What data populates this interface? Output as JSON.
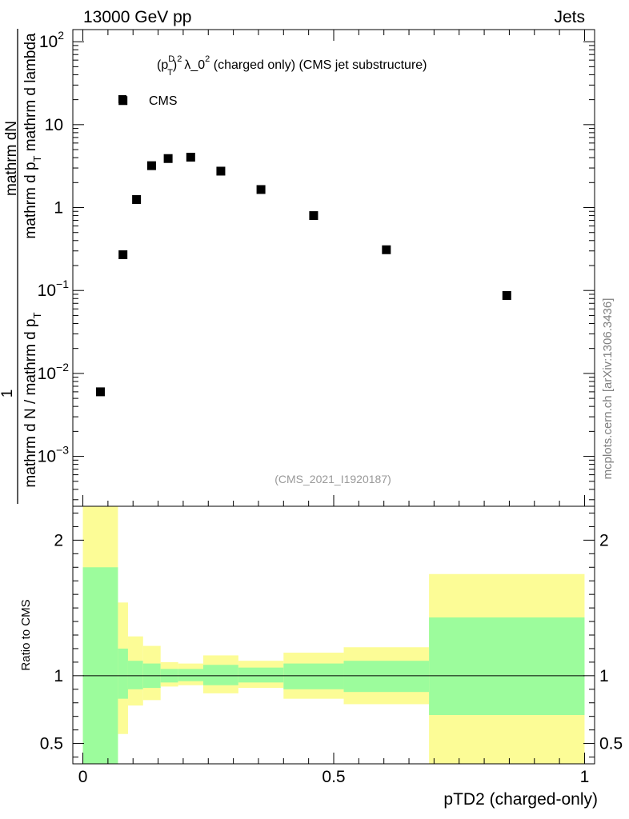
{
  "header": {
    "left": "13000 GeV pp",
    "right": "Jets"
  },
  "side_label": "mcplots.cern.ch [arXiv:1306.3436]",
  "chart_data": [
    {
      "type": "scatter",
      "title": "(pTD)2 λ_02 (charged only) (CMS jet substructure)",
      "title_parts": {
        "p": "(p",
        "sup_d": "D",
        "sub_t": "T",
        "close": ")",
        "sq": "2",
        "lambda": "λ_0",
        "sq2": "2",
        "rest": " (charged only) (CMS jet substructure)"
      },
      "ylabel_parts": {
        "top": "mathrm dN",
        "numerator_line": "mathrm d p",
        "numerator_sub": "T",
        "numerator_tail": " mathrm d lambda",
        "lhs_num": "1",
        "lhs_den": "mathrm d N / mathrm d p",
        "lhs_den_sub": "T"
      },
      "ylabel_full": "1 / (mathrm d N / mathrm d p_T) · mathrm dN / (mathrm d p_T mathrm d lambda)",
      "yscale": "log",
      "ylim": [
        0.00025,
        140
      ],
      "xlim": [
        -0.02,
        1.02
      ],
      "yticks": [
        {
          "v": 0.001,
          "base": "10",
          "exp": "−3"
        },
        {
          "v": 0.01,
          "base": "10",
          "exp": "−2"
        },
        {
          "v": 0.1,
          "base": "10",
          "exp": "−1"
        },
        {
          "v": 1,
          "base": "1",
          "exp": ""
        },
        {
          "v": 10,
          "base": "10",
          "exp": ""
        },
        {
          "v": 100,
          "base": "10",
          "exp": "2"
        }
      ],
      "legend": {
        "label": "CMS",
        "position": "top-left"
      },
      "annotation": "(CMS_2021_I1920187)",
      "series": [
        {
          "name": "CMS",
          "x": [
            0.035,
            0.08,
            0.08,
            0.107,
            0.137,
            0.17,
            0.215,
            0.275,
            0.355,
            0.46,
            0.605,
            0.845
          ],
          "y": [
            0.006,
            0.27,
            19.5,
            1.25,
            3.2,
            3.9,
            4.05,
            2.75,
            1.65,
            0.8,
            0.31,
            0.087
          ]
        }
      ]
    },
    {
      "type": "area",
      "ylabel": "Ratio to CMS",
      "xlabel": "pTD2 (charged-only)",
      "xlim": [
        -0.02,
        1.02
      ],
      "ylim": [
        0.35,
        2.25
      ],
      "xticks": [
        {
          "v": 0,
          "label": "0"
        },
        {
          "v": 0.5,
          "label": "0.5"
        },
        {
          "v": 1,
          "label": "1"
        }
      ],
      "yticks": [
        {
          "v": 0.5,
          "label": "0.5"
        },
        {
          "v": 1,
          "label": "1"
        },
        {
          "v": 2,
          "label": "2"
        }
      ],
      "reference_line": 1,
      "bins": [
        {
          "x0": 0.0,
          "x1": 0.07,
          "inner": [
            0.35,
            1.8
          ],
          "outer": [
            0.35,
            2.25
          ]
        },
        {
          "x0": 0.07,
          "x1": 0.09,
          "inner": [
            0.83,
            1.2
          ],
          "outer": [
            0.57,
            1.54
          ]
        },
        {
          "x0": 0.09,
          "x1": 0.12,
          "inner": [
            0.9,
            1.11
          ],
          "outer": [
            0.78,
            1.29
          ]
        },
        {
          "x0": 0.12,
          "x1": 0.155,
          "inner": [
            0.91,
            1.09
          ],
          "outer": [
            0.82,
            1.22
          ]
        },
        {
          "x0": 0.155,
          "x1": 0.19,
          "inner": [
            0.95,
            1.05
          ],
          "outer": [
            0.92,
            1.1
          ]
        },
        {
          "x0": 0.19,
          "x1": 0.24,
          "inner": [
            0.96,
            1.05
          ],
          "outer": [
            0.93,
            1.09
          ]
        },
        {
          "x0": 0.24,
          "x1": 0.31,
          "inner": [
            0.93,
            1.08
          ],
          "outer": [
            0.87,
            1.15
          ]
        },
        {
          "x0": 0.31,
          "x1": 0.4,
          "inner": [
            0.95,
            1.06
          ],
          "outer": [
            0.91,
            1.11
          ]
        },
        {
          "x0": 0.4,
          "x1": 0.52,
          "inner": [
            0.9,
            1.09
          ],
          "outer": [
            0.83,
            1.17
          ]
        },
        {
          "x0": 0.52,
          "x1": 0.69,
          "inner": [
            0.88,
            1.11
          ],
          "outer": [
            0.79,
            1.21
          ]
        },
        {
          "x0": 0.69,
          "x1": 1.0,
          "inner": [
            0.71,
            1.43
          ],
          "outer": [
            0.35,
            1.75
          ]
        }
      ]
    }
  ],
  "colors": {
    "inner": "#9cfc9c",
    "outer": "#fcfc96",
    "marker": "#000000",
    "annotation": "#999999",
    "side_label": "#7f7f7f"
  }
}
